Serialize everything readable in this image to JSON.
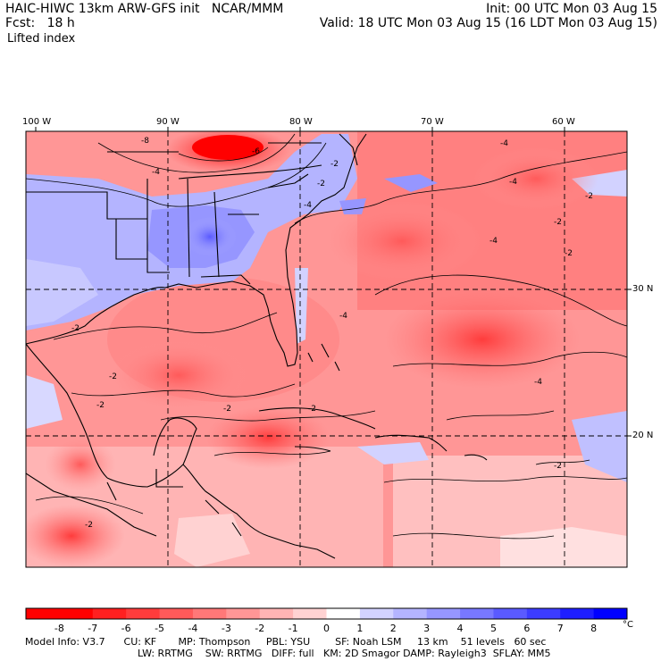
{
  "header": {
    "left_line1": "HAIC-HIWC 13km ARW-GFS init   NCAR/MMM",
    "left_line2": "Fcst:   18 h",
    "field_name": "Lifted index",
    "right_line1": "Init: 00 UTC Mon 03 Aug 15",
    "right_line2": "Valid: 18 UTC Mon 03 Aug 15 (16 LDT Mon 03 Aug 15)"
  },
  "map": {
    "longitude_labels": [
      "100 W",
      "90 W",
      "80 W",
      "70 W",
      "60 W"
    ],
    "latitude_labels": [
      "30 N",
      "20 N"
    ],
    "contour_labels": [
      "-8",
      "-6",
      "-4",
      "-4",
      "-2",
      "-2",
      "-4",
      "-2",
      "-4",
      "-4",
      "-4",
      "-2",
      "-2",
      "-2",
      "-2",
      "-2",
      "-2",
      "-2",
      "-2",
      "-4",
      "-2"
    ],
    "land_color": "#ffffff",
    "border_color": "#000000"
  },
  "colorbar": {
    "labels": [
      "-8",
      "-7",
      "-6",
      "-5",
      "-4",
      "-3",
      "-2",
      "-1",
      "0",
      "1",
      "2",
      "3",
      "4",
      "5",
      "6",
      "7",
      "8"
    ],
    "unit": "°C",
    "colors": [
      "#ff0000",
      "#ff2020",
      "#ff3c3c",
      "#ff5a5a",
      "#ff7878",
      "#ff9696",
      "#ffb4b4",
      "#ffd2d2",
      "#ffffff",
      "#d2d2ff",
      "#b4b4ff",
      "#9696ff",
      "#7878ff",
      "#5a5aff",
      "#3c3cff",
      "#1e1eff",
      "#0000ff"
    ]
  },
  "model_info": {
    "line1": "Model Info: V3.7      CU: KF       MP: Thompson     PBL: YSU        SF: Noah LSM     13 km    51 levels   60 sec",
    "line2": "LW: RRTMG    SW: RRTMG   DIFF: full   KM: 2D Smagor DAMP: Rayleigh3  SFLAY: MM5"
  }
}
